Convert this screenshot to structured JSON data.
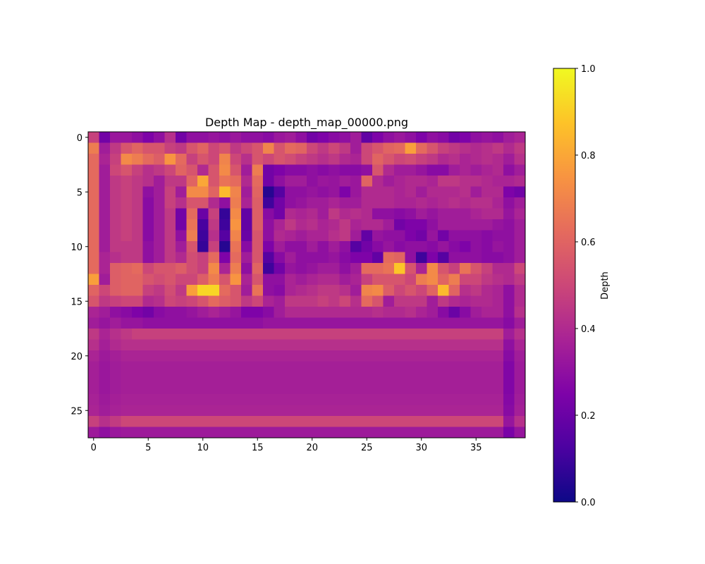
{
  "chart_data": {
    "type": "heatmap",
    "title": "Depth Map - depth_map_00000.png",
    "xlabel": "",
    "ylabel": "",
    "x_ticks": [
      0,
      5,
      10,
      15,
      20,
      25,
      30,
      35
    ],
    "y_ticks": [
      0,
      5,
      10,
      15,
      20,
      25
    ],
    "n_rows": 28,
    "n_cols": 40,
    "colormap": "plasma",
    "colorbar": {
      "label": "Depth",
      "min": 0.0,
      "max": 1.0,
      "ticks": [
        "0.0",
        "0.2",
        "0.4",
        "0.6",
        "0.8",
        "1.0"
      ]
    },
    "grid": false,
    "values": [
      [
        0.48,
        0.22,
        0.33,
        0.33,
        0.3,
        0.25,
        0.3,
        0.42,
        0.22,
        0.3,
        0.3,
        0.32,
        0.3,
        0.33,
        0.3,
        0.3,
        0.28,
        0.33,
        0.35,
        0.3,
        0.22,
        0.25,
        0.28,
        0.3,
        0.35,
        0.18,
        0.25,
        0.3,
        0.33,
        0.3,
        0.25,
        0.3,
        0.28,
        0.22,
        0.25,
        0.3,
        0.32,
        0.3,
        0.35,
        0.38
      ],
      [
        0.68,
        0.35,
        0.45,
        0.55,
        0.6,
        0.55,
        0.55,
        0.48,
        0.45,
        0.55,
        0.6,
        0.5,
        0.55,
        0.45,
        0.5,
        0.55,
        0.7,
        0.55,
        0.62,
        0.6,
        0.5,
        0.45,
        0.5,
        0.45,
        0.35,
        0.5,
        0.55,
        0.6,
        0.62,
        0.78,
        0.62,
        0.55,
        0.48,
        0.45,
        0.42,
        0.4,
        0.42,
        0.45,
        0.4,
        0.45
      ],
      [
        0.62,
        0.38,
        0.48,
        0.72,
        0.68,
        0.62,
        0.58,
        0.75,
        0.62,
        0.48,
        0.55,
        0.5,
        0.7,
        0.5,
        0.42,
        0.55,
        0.5,
        0.55,
        0.52,
        0.48,
        0.45,
        0.42,
        0.45,
        0.4,
        0.38,
        0.5,
        0.6,
        0.55,
        0.5,
        0.52,
        0.48,
        0.45,
        0.4,
        0.42,
        0.38,
        0.4,
        0.42,
        0.4,
        0.35,
        0.42
      ],
      [
        0.62,
        0.35,
        0.5,
        0.55,
        0.48,
        0.42,
        0.45,
        0.5,
        0.6,
        0.55,
        0.4,
        0.55,
        0.72,
        0.55,
        0.35,
        0.68,
        0.22,
        0.25,
        0.28,
        0.28,
        0.3,
        0.28,
        0.3,
        0.28,
        0.28,
        0.3,
        0.55,
        0.4,
        0.35,
        0.35,
        0.32,
        0.28,
        0.28,
        0.35,
        0.38,
        0.35,
        0.38,
        0.4,
        0.3,
        0.35
      ],
      [
        0.62,
        0.35,
        0.45,
        0.48,
        0.45,
        0.42,
        0.35,
        0.45,
        0.45,
        0.6,
        0.8,
        0.55,
        0.65,
        0.62,
        0.4,
        0.62,
        0.22,
        0.3,
        0.35,
        0.35,
        0.3,
        0.33,
        0.32,
        0.35,
        0.33,
        0.6,
        0.4,
        0.35,
        0.38,
        0.4,
        0.4,
        0.38,
        0.45,
        0.45,
        0.42,
        0.42,
        0.4,
        0.38,
        0.38,
        0.4
      ],
      [
        0.62,
        0.35,
        0.45,
        0.48,
        0.45,
        0.3,
        0.35,
        0.48,
        0.35,
        0.72,
        0.72,
        0.6,
        0.85,
        0.7,
        0.35,
        0.6,
        0.05,
        0.15,
        0.3,
        0.3,
        0.32,
        0.3,
        0.32,
        0.25,
        0.33,
        0.4,
        0.4,
        0.4,
        0.38,
        0.4,
        0.35,
        0.4,
        0.4,
        0.4,
        0.42,
        0.35,
        0.4,
        0.4,
        0.25,
        0.22
      ],
      [
        0.62,
        0.35,
        0.45,
        0.48,
        0.45,
        0.28,
        0.35,
        0.48,
        0.42,
        0.55,
        0.55,
        0.4,
        0.3,
        0.68,
        0.38,
        0.58,
        0.1,
        0.22,
        0.3,
        0.32,
        0.35,
        0.35,
        0.38,
        0.35,
        0.35,
        0.4,
        0.4,
        0.4,
        0.38,
        0.38,
        0.4,
        0.38,
        0.4,
        0.42,
        0.4,
        0.42,
        0.42,
        0.38,
        0.3,
        0.35
      ],
      [
        0.62,
        0.35,
        0.45,
        0.48,
        0.45,
        0.28,
        0.35,
        0.45,
        0.22,
        0.62,
        0.2,
        0.48,
        0.08,
        0.72,
        0.18,
        0.58,
        0.28,
        0.22,
        0.4,
        0.38,
        0.4,
        0.35,
        0.45,
        0.4,
        0.42,
        0.4,
        0.3,
        0.3,
        0.28,
        0.3,
        0.35,
        0.32,
        0.35,
        0.35,
        0.35,
        0.38,
        0.4,
        0.4,
        0.32,
        0.38
      ],
      [
        0.62,
        0.35,
        0.45,
        0.48,
        0.45,
        0.28,
        0.35,
        0.45,
        0.22,
        0.65,
        0.12,
        0.45,
        0.1,
        0.75,
        0.18,
        0.58,
        0.3,
        0.38,
        0.45,
        0.4,
        0.42,
        0.38,
        0.4,
        0.45,
        0.38,
        0.4,
        0.4,
        0.35,
        0.22,
        0.25,
        0.25,
        0.3,
        0.35,
        0.35,
        0.35,
        0.35,
        0.35,
        0.32,
        0.3,
        0.35
      ],
      [
        0.62,
        0.35,
        0.45,
        0.48,
        0.45,
        0.28,
        0.35,
        0.45,
        0.3,
        0.68,
        0.1,
        0.42,
        0.15,
        0.7,
        0.2,
        0.55,
        0.3,
        0.4,
        0.38,
        0.35,
        0.38,
        0.38,
        0.42,
        0.45,
        0.35,
        0.18,
        0.32,
        0.3,
        0.3,
        0.25,
        0.22,
        0.32,
        0.22,
        0.3,
        0.3,
        0.3,
        0.28,
        0.3,
        0.3,
        0.35
      ],
      [
        0.62,
        0.35,
        0.45,
        0.45,
        0.45,
        0.3,
        0.35,
        0.45,
        0.35,
        0.55,
        0.08,
        0.48,
        0.05,
        0.65,
        0.28,
        0.55,
        0.25,
        0.35,
        0.3,
        0.3,
        0.35,
        0.3,
        0.35,
        0.3,
        0.15,
        0.22,
        0.28,
        0.32,
        0.28,
        0.3,
        0.3,
        0.28,
        0.32,
        0.28,
        0.25,
        0.3,
        0.28,
        0.32,
        0.3,
        0.35
      ],
      [
        0.62,
        0.38,
        0.42,
        0.45,
        0.45,
        0.3,
        0.35,
        0.45,
        0.4,
        0.52,
        0.48,
        0.62,
        0.25,
        0.62,
        0.35,
        0.55,
        0.15,
        0.28,
        0.35,
        0.3,
        0.3,
        0.3,
        0.32,
        0.28,
        0.25,
        0.25,
        0.18,
        0.62,
        0.6,
        0.3,
        0.1,
        0.25,
        0.15,
        0.3,
        0.3,
        0.3,
        0.28,
        0.28,
        0.3,
        0.35
      ],
      [
        0.62,
        0.38,
        0.58,
        0.6,
        0.62,
        0.5,
        0.55,
        0.55,
        0.58,
        0.52,
        0.48,
        0.72,
        0.38,
        0.68,
        0.3,
        0.6,
        0.1,
        0.22,
        0.32,
        0.3,
        0.32,
        0.35,
        0.35,
        0.3,
        0.35,
        0.62,
        0.62,
        0.65,
        0.88,
        0.55,
        0.38,
        0.72,
        0.55,
        0.48,
        0.65,
        0.55,
        0.48,
        0.4,
        0.4,
        0.5
      ],
      [
        0.78,
        0.35,
        0.58,
        0.6,
        0.6,
        0.55,
        0.52,
        0.55,
        0.5,
        0.5,
        0.58,
        0.68,
        0.55,
        0.75,
        0.38,
        0.55,
        0.3,
        0.3,
        0.38,
        0.35,
        0.38,
        0.4,
        0.4,
        0.35,
        0.38,
        0.48,
        0.55,
        0.55,
        0.55,
        0.5,
        0.68,
        0.72,
        0.6,
        0.68,
        0.5,
        0.5,
        0.45,
        0.42,
        0.4,
        0.45
      ],
      [
        0.6,
        0.5,
        0.58,
        0.6,
        0.6,
        0.48,
        0.45,
        0.52,
        0.45,
        0.78,
        0.92,
        0.92,
        0.62,
        0.55,
        0.35,
        0.65,
        0.3,
        0.28,
        0.38,
        0.4,
        0.42,
        0.45,
        0.45,
        0.42,
        0.35,
        0.7,
        0.72,
        0.58,
        0.5,
        0.55,
        0.5,
        0.6,
        0.85,
        0.6,
        0.42,
        0.45,
        0.4,
        0.38,
        0.3,
        0.4
      ],
      [
        0.55,
        0.45,
        0.48,
        0.5,
        0.5,
        0.4,
        0.42,
        0.5,
        0.48,
        0.5,
        0.55,
        0.62,
        0.58,
        0.55,
        0.45,
        0.5,
        0.38,
        0.35,
        0.45,
        0.45,
        0.45,
        0.48,
        0.45,
        0.5,
        0.42,
        0.62,
        0.55,
        0.35,
        0.45,
        0.45,
        0.45,
        0.35,
        0.45,
        0.4,
        0.38,
        0.4,
        0.4,
        0.38,
        0.3,
        0.4
      ],
      [
        0.38,
        0.35,
        0.3,
        0.28,
        0.25,
        0.22,
        0.28,
        0.3,
        0.3,
        0.32,
        0.35,
        0.38,
        0.35,
        0.32,
        0.25,
        0.25,
        0.28,
        0.35,
        0.4,
        0.4,
        0.4,
        0.4,
        0.4,
        0.4,
        0.4,
        0.4,
        0.42,
        0.4,
        0.4,
        0.42,
        0.38,
        0.35,
        0.28,
        0.2,
        0.28,
        0.35,
        0.38,
        0.38,
        0.3,
        0.42
      ],
      [
        0.35,
        0.32,
        0.35,
        0.32,
        0.32,
        0.3,
        0.3,
        0.3,
        0.3,
        0.3,
        0.3,
        0.3,
        0.3,
        0.3,
        0.3,
        0.3,
        0.32,
        0.32,
        0.32,
        0.32,
        0.32,
        0.32,
        0.32,
        0.32,
        0.32,
        0.32,
        0.32,
        0.32,
        0.32,
        0.32,
        0.32,
        0.32,
        0.32,
        0.32,
        0.32,
        0.32,
        0.32,
        0.32,
        0.28,
        0.35
      ],
      [
        0.45,
        0.38,
        0.42,
        0.45,
        0.48,
        0.48,
        0.48,
        0.48,
        0.48,
        0.48,
        0.48,
        0.48,
        0.48,
        0.48,
        0.48,
        0.48,
        0.48,
        0.48,
        0.48,
        0.48,
        0.48,
        0.48,
        0.48,
        0.48,
        0.48,
        0.48,
        0.48,
        0.48,
        0.48,
        0.48,
        0.48,
        0.48,
        0.48,
        0.48,
        0.48,
        0.48,
        0.48,
        0.48,
        0.35,
        0.42
      ],
      [
        0.42,
        0.36,
        0.4,
        0.42,
        0.42,
        0.42,
        0.42,
        0.42,
        0.42,
        0.42,
        0.42,
        0.42,
        0.42,
        0.42,
        0.42,
        0.42,
        0.42,
        0.42,
        0.42,
        0.42,
        0.42,
        0.42,
        0.42,
        0.42,
        0.42,
        0.42,
        0.42,
        0.42,
        0.42,
        0.42,
        0.42,
        0.42,
        0.42,
        0.42,
        0.42,
        0.42,
        0.42,
        0.42,
        0.3,
        0.38
      ],
      [
        0.38,
        0.34,
        0.36,
        0.38,
        0.38,
        0.38,
        0.38,
        0.38,
        0.38,
        0.38,
        0.38,
        0.38,
        0.38,
        0.38,
        0.38,
        0.38,
        0.38,
        0.38,
        0.38,
        0.38,
        0.38,
        0.38,
        0.38,
        0.38,
        0.38,
        0.38,
        0.38,
        0.38,
        0.38,
        0.38,
        0.38,
        0.38,
        0.38,
        0.38,
        0.38,
        0.38,
        0.38,
        0.38,
        0.28,
        0.35
      ],
      [
        0.36,
        0.33,
        0.35,
        0.36,
        0.36,
        0.36,
        0.36,
        0.36,
        0.36,
        0.36,
        0.36,
        0.36,
        0.36,
        0.36,
        0.36,
        0.36,
        0.36,
        0.36,
        0.36,
        0.36,
        0.36,
        0.36,
        0.36,
        0.36,
        0.36,
        0.36,
        0.36,
        0.36,
        0.36,
        0.36,
        0.36,
        0.36,
        0.36,
        0.36,
        0.36,
        0.36,
        0.36,
        0.36,
        0.26,
        0.34
      ],
      [
        0.36,
        0.33,
        0.35,
        0.36,
        0.36,
        0.36,
        0.36,
        0.36,
        0.36,
        0.36,
        0.36,
        0.36,
        0.36,
        0.36,
        0.36,
        0.36,
        0.36,
        0.36,
        0.36,
        0.36,
        0.36,
        0.36,
        0.36,
        0.36,
        0.36,
        0.36,
        0.36,
        0.36,
        0.36,
        0.36,
        0.36,
        0.36,
        0.36,
        0.36,
        0.36,
        0.36,
        0.36,
        0.36,
        0.26,
        0.34
      ],
      [
        0.36,
        0.33,
        0.35,
        0.36,
        0.36,
        0.36,
        0.36,
        0.36,
        0.36,
        0.36,
        0.36,
        0.36,
        0.36,
        0.36,
        0.36,
        0.36,
        0.36,
        0.36,
        0.36,
        0.36,
        0.36,
        0.36,
        0.36,
        0.36,
        0.36,
        0.36,
        0.36,
        0.36,
        0.36,
        0.36,
        0.36,
        0.36,
        0.36,
        0.36,
        0.36,
        0.36,
        0.36,
        0.36,
        0.26,
        0.34
      ],
      [
        0.37,
        0.34,
        0.36,
        0.37,
        0.37,
        0.37,
        0.37,
        0.37,
        0.37,
        0.37,
        0.37,
        0.37,
        0.37,
        0.37,
        0.37,
        0.37,
        0.37,
        0.37,
        0.37,
        0.37,
        0.37,
        0.37,
        0.37,
        0.37,
        0.37,
        0.37,
        0.37,
        0.37,
        0.37,
        0.37,
        0.37,
        0.37,
        0.37,
        0.37,
        0.37,
        0.37,
        0.37,
        0.37,
        0.27,
        0.35
      ],
      [
        0.38,
        0.35,
        0.37,
        0.38,
        0.38,
        0.38,
        0.38,
        0.38,
        0.38,
        0.38,
        0.38,
        0.38,
        0.38,
        0.38,
        0.38,
        0.38,
        0.38,
        0.38,
        0.38,
        0.38,
        0.38,
        0.38,
        0.38,
        0.38,
        0.38,
        0.38,
        0.38,
        0.38,
        0.38,
        0.38,
        0.38,
        0.38,
        0.38,
        0.38,
        0.38,
        0.38,
        0.38,
        0.38,
        0.28,
        0.36
      ],
      [
        0.48,
        0.42,
        0.46,
        0.5,
        0.5,
        0.5,
        0.5,
        0.5,
        0.5,
        0.5,
        0.5,
        0.5,
        0.5,
        0.5,
        0.5,
        0.5,
        0.5,
        0.5,
        0.5,
        0.5,
        0.5,
        0.5,
        0.5,
        0.5,
        0.5,
        0.5,
        0.5,
        0.5,
        0.5,
        0.5,
        0.5,
        0.5,
        0.5,
        0.5,
        0.5,
        0.5,
        0.5,
        0.5,
        0.32,
        0.42
      ],
      [
        0.34,
        0.3,
        0.33,
        0.34,
        0.34,
        0.34,
        0.34,
        0.34,
        0.34,
        0.34,
        0.34,
        0.34,
        0.34,
        0.34,
        0.34,
        0.34,
        0.34,
        0.34,
        0.34,
        0.34,
        0.34,
        0.34,
        0.34,
        0.34,
        0.34,
        0.34,
        0.34,
        0.34,
        0.34,
        0.34,
        0.34,
        0.34,
        0.34,
        0.34,
        0.34,
        0.34,
        0.34,
        0.34,
        0.24,
        0.32
      ]
    ]
  }
}
